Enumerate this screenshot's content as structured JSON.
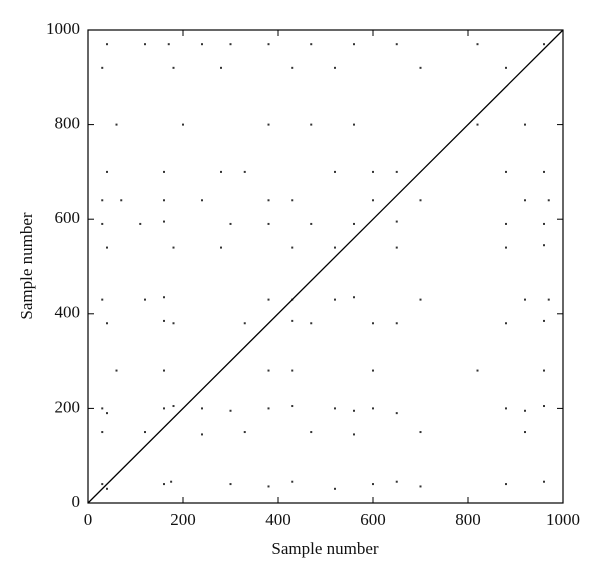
{
  "chart_data": {
    "type": "scatter",
    "xlabel": "Sample number",
    "ylabel": "Sample number",
    "xlim": [
      0,
      1000
    ],
    "ylim": [
      0,
      1000
    ],
    "xticks": [
      0,
      200,
      400,
      600,
      800,
      1000
    ],
    "yticks": [
      0,
      200,
      400,
      600,
      800,
      1000
    ],
    "series": [
      {
        "style": "points",
        "color": "#333333",
        "x": [
          30,
          40,
          160,
          175,
          300,
          380,
          430,
          520,
          600,
          650,
          700,
          880,
          960,
          30,
          40,
          160,
          180,
          240,
          300,
          380,
          430,
          520,
          560,
          600,
          650,
          880,
          920,
          960,
          30,
          120,
          240,
          330,
          470,
          560,
          700,
          920,
          60,
          160,
          380,
          430,
          600,
          820,
          960,
          40,
          160,
          180,
          330,
          430,
          470,
          600,
          650,
          880,
          960,
          30,
          120,
          160,
          380,
          430,
          520,
          560,
          700,
          920,
          970,
          40,
          180,
          280,
          430,
          520,
          650,
          880,
          960,
          30,
          110,
          160,
          300,
          380,
          470,
          560,
          650,
          880,
          960,
          30,
          70,
          160,
          240,
          380,
          430,
          600,
          700,
          920,
          970,
          40,
          160,
          280,
          330,
          520,
          600,
          650,
          880,
          960,
          60,
          200,
          380,
          470,
          560,
          820,
          920,
          30,
          180,
          280,
          430,
          520,
          700,
          880,
          40,
          120,
          170,
          240,
          300,
          380,
          470,
          560,
          650,
          820,
          960
        ],
        "values": [
          40,
          30,
          40,
          45,
          40,
          35,
          45,
          30,
          40,
          45,
          35,
          40,
          45,
          200,
          190,
          200,
          205,
          200,
          195,
          200,
          205,
          200,
          195,
          200,
          190,
          200,
          195,
          205,
          150,
          150,
          145,
          150,
          150,
          145,
          150,
          150,
          280,
          280,
          280,
          280,
          280,
          280,
          280,
          380,
          385,
          380,
          380,
          385,
          380,
          380,
          380,
          380,
          385,
          430,
          430,
          435,
          430,
          430,
          430,
          435,
          430,
          430,
          430,
          540,
          540,
          540,
          540,
          540,
          540,
          540,
          545,
          590,
          590,
          595,
          590,
          590,
          590,
          590,
          595,
          590,
          590,
          640,
          640,
          640,
          640,
          640,
          640,
          640,
          640,
          640,
          640,
          700,
          700,
          700,
          700,
          700,
          700,
          700,
          700,
          700,
          800,
          800,
          800,
          800,
          800,
          800,
          800,
          920,
          920,
          920,
          920,
          920,
          920,
          920,
          970,
          970,
          970,
          970,
          970,
          970,
          970,
          970,
          970,
          970,
          970
        ]
      },
      {
        "style": "line",
        "color": "#000000",
        "x": [
          0,
          1000
        ],
        "values": [
          0,
          1000
        ]
      }
    ]
  }
}
